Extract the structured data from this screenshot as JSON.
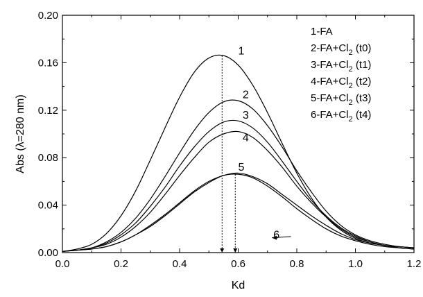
{
  "chart_data": {
    "type": "line",
    "title": "",
    "xlabel": "Kd",
    "ylabel": "Abs (λ=280 nm)",
    "xlim": [
      0.0,
      1.2
    ],
    "ylim": [
      0.0,
      0.2
    ],
    "x_ticks": [
      "0.0",
      "0.2",
      "0.4",
      "0.6",
      "0.8",
      "1.0",
      "1.2"
    ],
    "y_ticks": [
      "0.00",
      "0.04",
      "0.08",
      "0.12",
      "0.16",
      "0.20"
    ],
    "grid": false,
    "legend_position": "top-right",
    "legend": [
      {
        "id": "1",
        "prefix": "1-FA",
        "sub": "",
        "suffix": ""
      },
      {
        "id": "2",
        "prefix": "2-FA+Cl",
        "sub": "2",
        "suffix": " (t0)"
      },
      {
        "id": "3",
        "prefix": "3-FA+Cl",
        "sub": "2",
        "suffix": " (t1)"
      },
      {
        "id": "4",
        "prefix": "4-FA+Cl",
        "sub": "2",
        "suffix": " (t2)"
      },
      {
        "id": "5",
        "prefix": "5-FA+Cl",
        "sub": "2",
        "suffix": " (t3)"
      },
      {
        "id": "6",
        "prefix": "6-FA+Cl",
        "sub": "2",
        "suffix": " (t4)"
      }
    ],
    "series": [
      {
        "label": "1",
        "x": [
          0.0,
          0.05,
          0.1,
          0.15,
          0.2,
          0.25,
          0.3,
          0.35,
          0.4,
          0.45,
          0.5,
          0.55,
          0.6,
          0.65,
          0.7,
          0.75,
          0.8,
          0.85,
          0.9,
          0.95,
          1.0,
          1.05,
          1.1,
          1.15,
          1.2
        ],
        "y": [
          0.001,
          0.003,
          0.007,
          0.016,
          0.031,
          0.052,
          0.078,
          0.105,
          0.131,
          0.152,
          0.164,
          0.166,
          0.158,
          0.141,
          0.118,
          0.092,
          0.067,
          0.046,
          0.03,
          0.019,
          0.012,
          0.008,
          0.006,
          0.004,
          0.003
        ]
      },
      {
        "label": "2",
        "x": [
          0.0,
          0.05,
          0.1,
          0.15,
          0.2,
          0.25,
          0.3,
          0.35,
          0.4,
          0.45,
          0.5,
          0.55,
          0.6,
          0.65,
          0.7,
          0.75,
          0.8,
          0.85,
          0.9,
          0.95,
          1.0,
          1.05,
          1.1,
          1.15,
          1.2
        ],
        "y": [
          0.001,
          0.002,
          0.004,
          0.009,
          0.017,
          0.029,
          0.045,
          0.064,
          0.084,
          0.103,
          0.118,
          0.127,
          0.128,
          0.121,
          0.107,
          0.089,
          0.069,
          0.051,
          0.035,
          0.023,
          0.015,
          0.01,
          0.007,
          0.005,
          0.004
        ]
      },
      {
        "label": "3",
        "x": [
          0.0,
          0.05,
          0.1,
          0.15,
          0.2,
          0.25,
          0.3,
          0.35,
          0.4,
          0.45,
          0.5,
          0.55,
          0.6,
          0.65,
          0.7,
          0.75,
          0.8,
          0.85,
          0.9,
          0.95,
          1.0,
          1.05,
          1.1,
          1.15,
          1.2
        ],
        "y": [
          0.001,
          0.002,
          0.004,
          0.008,
          0.015,
          0.025,
          0.039,
          0.055,
          0.073,
          0.089,
          0.102,
          0.11,
          0.111,
          0.105,
          0.093,
          0.077,
          0.06,
          0.044,
          0.031,
          0.021,
          0.014,
          0.009,
          0.006,
          0.005,
          0.004
        ]
      },
      {
        "label": "4",
        "x": [
          0.0,
          0.05,
          0.1,
          0.15,
          0.2,
          0.25,
          0.3,
          0.35,
          0.4,
          0.45,
          0.5,
          0.55,
          0.6,
          0.65,
          0.7,
          0.75,
          0.8,
          0.85,
          0.9,
          0.95,
          1.0,
          1.05,
          1.1,
          1.15,
          1.2
        ],
        "y": [
          0.001,
          0.002,
          0.004,
          0.007,
          0.013,
          0.022,
          0.034,
          0.049,
          0.065,
          0.08,
          0.093,
          0.1,
          0.102,
          0.097,
          0.086,
          0.072,
          0.056,
          0.042,
          0.03,
          0.02,
          0.013,
          0.009,
          0.006,
          0.005,
          0.004
        ]
      },
      {
        "label": "5",
        "x": [
          0.0,
          0.05,
          0.1,
          0.15,
          0.2,
          0.25,
          0.3,
          0.35,
          0.4,
          0.45,
          0.5,
          0.55,
          0.6,
          0.65,
          0.7,
          0.75,
          0.8,
          0.85,
          0.9,
          0.95,
          1.0,
          1.05,
          1.1,
          1.15,
          1.2
        ],
        "y": [
          0.001,
          0.002,
          0.003,
          0.005,
          0.009,
          0.015,
          0.023,
          0.032,
          0.042,
          0.052,
          0.06,
          0.065,
          0.067,
          0.064,
          0.058,
          0.049,
          0.04,
          0.031,
          0.023,
          0.016,
          0.011,
          0.008,
          0.006,
          0.004,
          0.003
        ]
      },
      {
        "label": "6",
        "x": [
          0.0,
          0.05,
          0.1,
          0.15,
          0.2,
          0.25,
          0.3,
          0.35,
          0.4,
          0.45,
          0.5,
          0.55,
          0.6,
          0.65,
          0.7,
          0.75,
          0.8,
          0.85,
          0.9,
          0.95,
          1.0,
          1.05,
          1.1,
          1.15,
          1.2
        ],
        "y": [
          0.001,
          0.002,
          0.003,
          0.005,
          0.009,
          0.015,
          0.022,
          0.031,
          0.041,
          0.051,
          0.059,
          0.065,
          0.066,
          0.063,
          0.056,
          0.047,
          0.037,
          0.028,
          0.02,
          0.014,
          0.01,
          0.007,
          0.005,
          0.004,
          0.003
        ]
      }
    ],
    "peak_markers": [
      0.545,
      0.59
    ],
    "curve_label_anchors": [
      {
        "text": "1",
        "x": 0.6,
        "y": 0.167
      },
      {
        "text": "2",
        "x": 0.615,
        "y": 0.13
      },
      {
        "text": "3",
        "x": 0.615,
        "y": 0.113
      },
      {
        "text": "4",
        "x": 0.615,
        "y": 0.094
      },
      {
        "text": "5",
        "x": 0.6,
        "y": 0.069
      },
      {
        "text": "6",
        "x": 0.72,
        "y": 0.012
      }
    ],
    "arrow": {
      "from": [
        0.78,
        0.0135
      ],
      "to": [
        0.715,
        0.0125
      ]
    },
    "colors": {
      "line": "#000000",
      "axis": "#000000",
      "background": "#ffffff"
    }
  }
}
